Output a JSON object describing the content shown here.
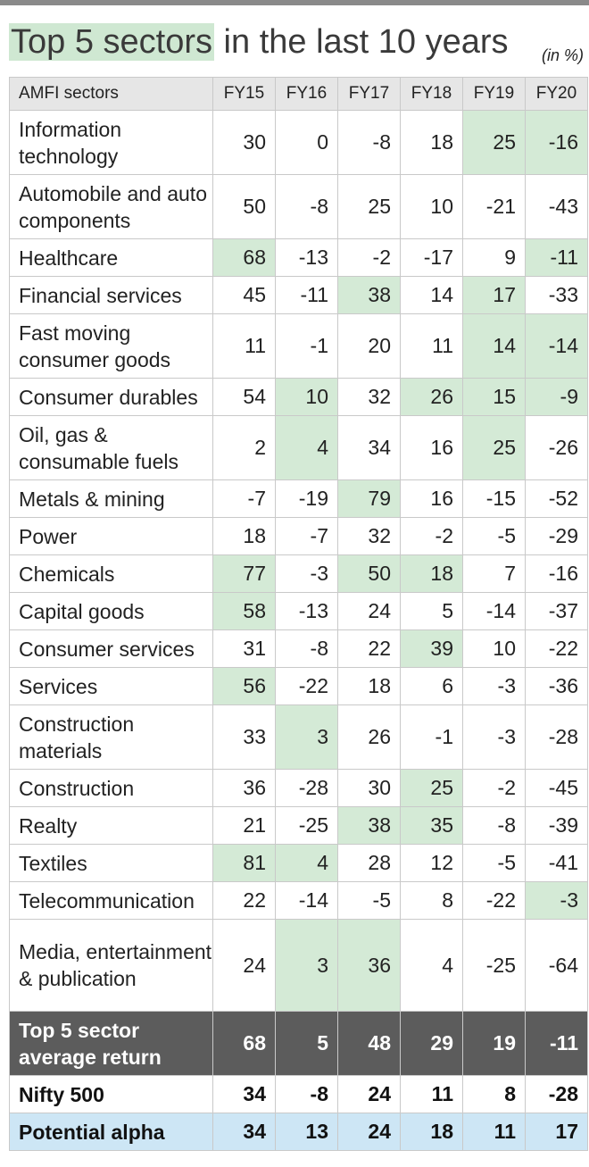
{
  "title": {
    "highlight": "Top 5 sectors",
    "rest": " in the last 10 years"
  },
  "unit_note": "(in %)",
  "chart_data": {
    "type": "table",
    "columns": [
      "AMFI sectors",
      "FY15",
      "FY16",
      "FY17",
      "FY18",
      "FY19",
      "FY20"
    ],
    "rows": [
      {
        "sector": "Information technology",
        "values": [
          30,
          0,
          -8,
          18,
          25,
          -16
        ],
        "top5": [
          false,
          false,
          false,
          false,
          true,
          true
        ]
      },
      {
        "sector": "Automobile and auto components",
        "values": [
          50,
          -8,
          25,
          10,
          -21,
          -43
        ],
        "top5": [
          false,
          false,
          false,
          false,
          false,
          false
        ]
      },
      {
        "sector": "Healthcare",
        "values": [
          68,
          -13,
          -2,
          -17,
          9,
          -11
        ],
        "top5": [
          true,
          false,
          false,
          false,
          false,
          true
        ]
      },
      {
        "sector": "Financial services",
        "values": [
          45,
          -11,
          38,
          14,
          17,
          -33
        ],
        "top5": [
          false,
          false,
          true,
          false,
          true,
          false
        ]
      },
      {
        "sector": "Fast moving consumer goods",
        "values": [
          11,
          -1,
          20,
          11,
          14,
          -14
        ],
        "top5": [
          false,
          false,
          false,
          false,
          true,
          true
        ]
      },
      {
        "sector": "Consumer durables",
        "values": [
          54,
          10,
          32,
          26,
          15,
          -9
        ],
        "top5": [
          false,
          true,
          false,
          true,
          true,
          true
        ]
      },
      {
        "sector": "Oil, gas & consumable fuels",
        "values": [
          2,
          4,
          34,
          16,
          25,
          -26
        ],
        "top5": [
          false,
          true,
          false,
          false,
          true,
          false
        ]
      },
      {
        "sector": "Metals & mining",
        "values": [
          -7,
          -19,
          79,
          16,
          -15,
          -52
        ],
        "top5": [
          false,
          false,
          true,
          false,
          false,
          false
        ]
      },
      {
        "sector": "Power",
        "values": [
          18,
          -7,
          32,
          -2,
          -5,
          -29
        ],
        "top5": [
          false,
          false,
          false,
          false,
          false,
          false
        ]
      },
      {
        "sector": "Chemicals",
        "values": [
          77,
          -3,
          50,
          18,
          7,
          -16
        ],
        "top5": [
          true,
          false,
          true,
          true,
          false,
          false
        ]
      },
      {
        "sector": "Capital goods",
        "values": [
          58,
          -13,
          24,
          5,
          -14,
          -37
        ],
        "top5": [
          true,
          false,
          false,
          false,
          false,
          false
        ]
      },
      {
        "sector": "Consumer services",
        "values": [
          31,
          -8,
          22,
          39,
          10,
          -22
        ],
        "top5": [
          false,
          false,
          false,
          true,
          false,
          false
        ]
      },
      {
        "sector": "Services",
        "values": [
          56,
          -22,
          18,
          6,
          -3,
          -36
        ],
        "top5": [
          true,
          false,
          false,
          false,
          false,
          false
        ]
      },
      {
        "sector": "Construction materials",
        "values": [
          33,
          3,
          26,
          -1,
          -3,
          -28
        ],
        "top5": [
          false,
          true,
          false,
          false,
          false,
          false
        ]
      },
      {
        "sector": "Construction",
        "values": [
          36,
          -28,
          30,
          25,
          -2,
          -45
        ],
        "top5": [
          false,
          false,
          false,
          true,
          false,
          false
        ]
      },
      {
        "sector": "Realty",
        "values": [
          21,
          -25,
          38,
          35,
          -8,
          -39
        ],
        "top5": [
          false,
          false,
          true,
          true,
          false,
          false
        ]
      },
      {
        "sector": "Textiles",
        "values": [
          81,
          4,
          28,
          12,
          -5,
          -41
        ],
        "top5": [
          true,
          true,
          false,
          false,
          false,
          false
        ]
      },
      {
        "sector": "Telecommunication",
        "values": [
          22,
          -14,
          -5,
          8,
          -22,
          -3
        ],
        "top5": [
          false,
          false,
          false,
          false,
          false,
          true
        ]
      },
      {
        "sector": "Media, entertainment & publication",
        "values": [
          24,
          3,
          36,
          4,
          -25,
          -64
        ],
        "top5": [
          false,
          true,
          true,
          false,
          false,
          false
        ]
      }
    ],
    "summary_rows": [
      {
        "label": "Top 5 sector average return",
        "values": [
          68,
          5,
          48,
          29,
          19,
          -11
        ]
      },
      {
        "label": "Nifty 500",
        "values": [
          34,
          -8,
          24,
          11,
          8,
          -28
        ]
      },
      {
        "label": "Potential alpha",
        "values": [
          34,
          13,
          24,
          18,
          11,
          17
        ]
      }
    ]
  },
  "colors": {
    "highlight": "#d4ead6",
    "title_highlight": "#cfe8d2",
    "header_bg": "#e6e6e6",
    "average_row_bg": "#5c5c5c",
    "alpha_row_bg": "#cde6f5"
  }
}
